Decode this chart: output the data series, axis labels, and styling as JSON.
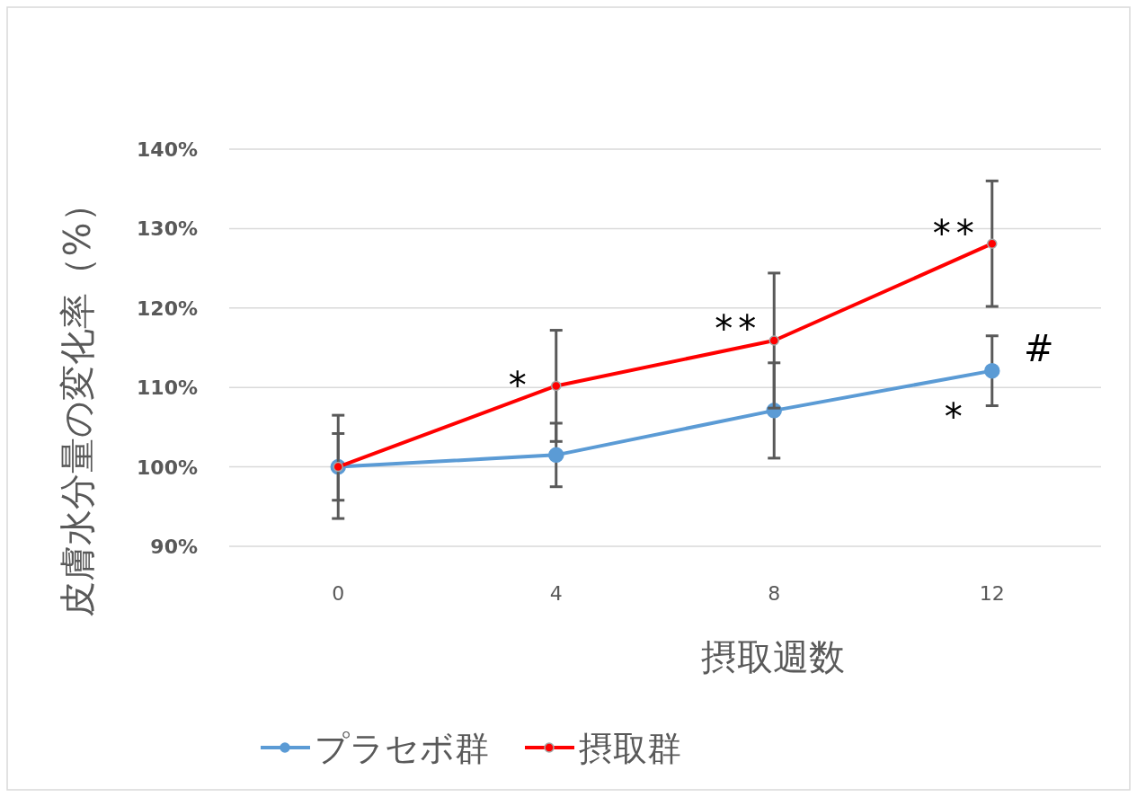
{
  "chart_data": {
    "type": "line",
    "xlabel": "摂取週数",
    "ylabel": "皮膚水分量の変化率（%）",
    "categories": [
      "0",
      "4",
      "8",
      "12"
    ],
    "ylim": [
      90,
      140
    ],
    "yticks": [
      {
        "value": 90,
        "label": "90%"
      },
      {
        "value": 100,
        "label": "100%"
      },
      {
        "value": 110,
        "label": "110%"
      },
      {
        "value": 120,
        "label": "120%"
      },
      {
        "value": 130,
        "label": "130%"
      },
      {
        "value": 140,
        "label": "140%"
      }
    ],
    "grid": "y",
    "legend": "bottom",
    "marker": "circle",
    "series": [
      {
        "name": "プラセボ群",
        "color": "#5b9bd5",
        "values": [
          100,
          101.5,
          107.1,
          112.1
        ],
        "errors": [
          4.2,
          4.0,
          6.0,
          4.4
        ]
      },
      {
        "name": "摂取群",
        "color": "#ff0000",
        "values": [
          100,
          110.2,
          115.9,
          128.1
        ],
        "errors": [
          6.5,
          7.0,
          8.5,
          7.9
        ]
      }
    ],
    "annotations": [
      {
        "text": "*",
        "x": "4",
        "y": 110.9
      },
      {
        "text": "**",
        "x": "8",
        "y": 118.1
      },
      {
        "text": "**",
        "x": "12",
        "y": 130.0
      },
      {
        "text": "*",
        "x": "12",
        "y": 107.0
      },
      "#"
    ]
  }
}
